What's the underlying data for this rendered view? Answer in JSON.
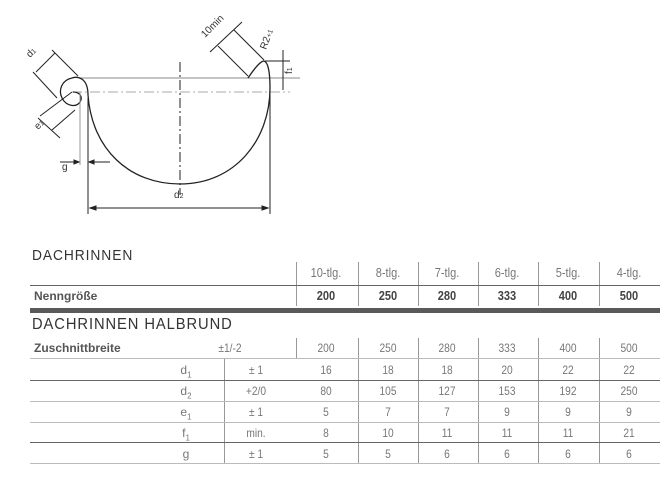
{
  "diagram": {
    "labels": {
      "d1": "d",
      "d1_sub": "1",
      "e1": "e",
      "e1_sub": "1",
      "g": "g",
      "d2": "d",
      "d2_sub": "2",
      "ten_min": "10min",
      "r": "R2",
      "r_sub": "+1",
      "f1": "f",
      "f1_sub": "1"
    }
  },
  "table1": {
    "title": "DACHRINNEN",
    "columns": [
      "10-tlg.",
      "8-tlg.",
      "7-tlg.",
      "6-tlg.",
      "5-tlg.",
      "4-tlg."
    ],
    "row_label": "Nenngröße",
    "values": [
      "200",
      "250",
      "280",
      "333",
      "400",
      "500"
    ]
  },
  "table2": {
    "title": "DACHRINNEN HALBRUND",
    "rows": [
      {
        "label": "Zuschnittbreite",
        "sub": "",
        "tol": "±1/-2",
        "values": [
          "200",
          "250",
          "280",
          "333",
          "400",
          "500"
        ]
      },
      {
        "label": "d",
        "sub": "1",
        "tol": "± 1",
        "values": [
          "16",
          "18",
          "18",
          "20",
          "22",
          "22"
        ]
      },
      {
        "label": "d",
        "sub": "2",
        "tol": "+2/0",
        "values": [
          "80",
          "105",
          "127",
          "153",
          "192",
          "250"
        ]
      },
      {
        "label": "e",
        "sub": "1",
        "tol": "± 1",
        "values": [
          "5",
          "7",
          "7",
          "9",
          "9",
          "9"
        ]
      },
      {
        "label": "f",
        "sub": "1",
        "tol": "min.",
        "values": [
          "8",
          "10",
          "11",
          "11",
          "11",
          "21"
        ]
      },
      {
        "label": "g",
        "sub": "",
        "tol": "± 1",
        "values": [
          "5",
          "5",
          "6",
          "6",
          "6",
          "6"
        ]
      }
    ]
  }
}
